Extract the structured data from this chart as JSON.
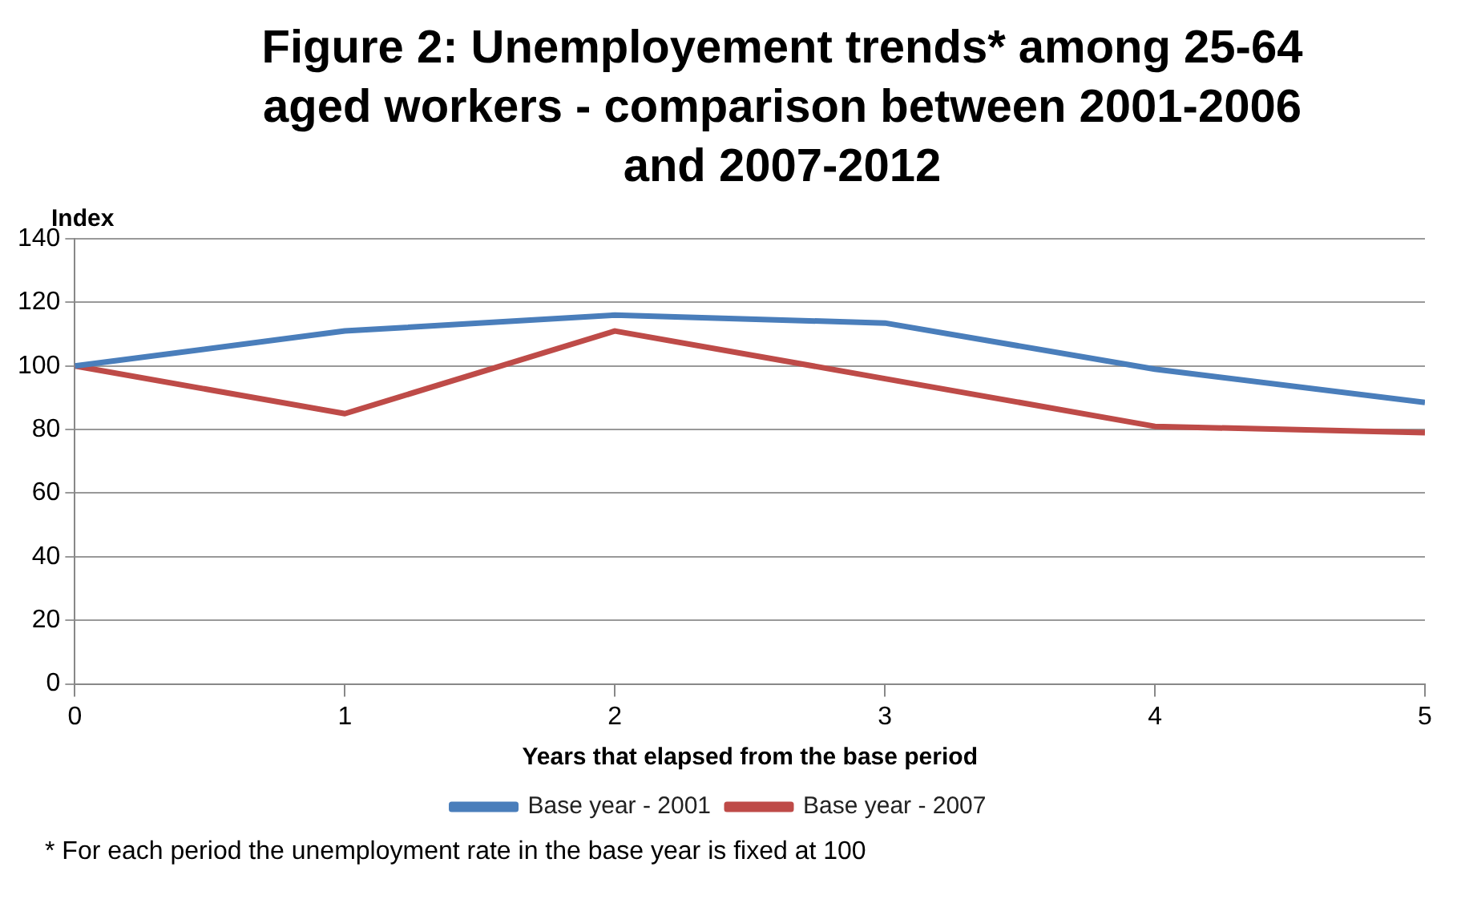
{
  "chart_data": {
    "type": "line",
    "title": "Figure 2: Unemployement trends* among 25-64 aged workers  - comparison between 2001-2006 and 2007-2012",
    "xlabel": "Years that elapsed from the base period",
    "ylabel": "Index",
    "x": [
      0,
      1,
      2,
      3,
      4,
      5
    ],
    "series": [
      {
        "name": "Base year - 2001",
        "color": "#4a7ebb",
        "values": [
          100,
          111,
          116,
          113.5,
          99,
          88.5
        ]
      },
      {
        "name": "Base year - 2007",
        "color": "#be4b48",
        "values": [
          100,
          85,
          111,
          96,
          81,
          79
        ]
      }
    ],
    "xlim": [
      0,
      5
    ],
    "xticks": [
      0,
      1,
      2,
      3,
      4,
      5
    ],
    "ylim": [
      0,
      140
    ],
    "yticks": [
      0,
      20,
      40,
      60,
      80,
      100,
      120,
      140
    ],
    "grid": "y",
    "legend": "bottom",
    "marker": "none",
    "line_style": "solid",
    "annotations": [
      "* For each period the unemployment rate in the base year is fixed at 100"
    ]
  }
}
